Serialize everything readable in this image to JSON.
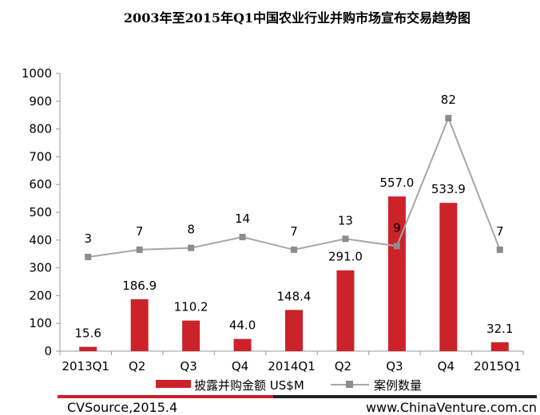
{
  "chart_data": {
    "type": "bar+line",
    "title": "2003年至2015年Q1中国农业行业并购市场宣布交易趋势图",
    "categories": [
      "2013Q1",
      "Q2",
      "Q3",
      "Q4",
      "2014Q1",
      "Q2",
      "Q3",
      "Q4",
      "2015Q1"
    ],
    "ylim": [
      0,
      1000
    ],
    "yticks": [
      "0",
      "100",
      "200",
      "300",
      "400",
      "500",
      "600",
      "700",
      "800",
      "900",
      "1000"
    ],
    "series": [
      {
        "name": "披露并购金额 US$M",
        "type": "bar",
        "color": "#cc2229",
        "values": [
          15.6,
          186.9,
          110.2,
          44.0,
          148.4,
          291.0,
          557.0,
          533.9,
          32.1
        ],
        "labels": [
          "15.6",
          "186.9",
          "110.2",
          "44.0",
          "148.4",
          "291.0",
          "557.0",
          "533.9",
          "32.1"
        ]
      },
      {
        "name": "案例数量",
        "type": "line",
        "color": "#a6a6a6",
        "values": [
          3,
          7,
          8,
          14,
          7,
          13,
          9,
          82,
          7
        ],
        "labels": [
          "3",
          "7",
          "8",
          "14",
          "7",
          "13",
          "9",
          "82",
          "7"
        ]
      }
    ],
    "legend_position": "bottom",
    "grid": false
  },
  "footer": {
    "source": "CVSource,2015.4",
    "website": "www.ChinaVenture.com.cn"
  }
}
